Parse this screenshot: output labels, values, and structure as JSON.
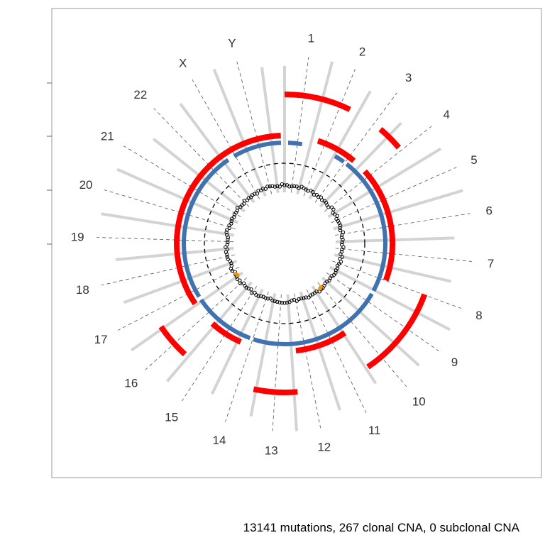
{
  "chart_data": {
    "type": "circos",
    "chromosomes": [
      "1",
      "2",
      "3",
      "4",
      "5",
      "6",
      "7",
      "8",
      "9",
      "10",
      "11",
      "12",
      "13",
      "14",
      "15",
      "16",
      "17",
      "18",
      "19",
      "20",
      "21",
      "22",
      "X",
      "Y"
    ],
    "caption": "13141 mutations, 267 clonal CNA, 0 subclonal CNA",
    "tracks": {
      "mutations": {
        "count": 13141,
        "color": "#000000",
        "highlight_color": "#FF9900"
      },
      "clonal_cna": {
        "count": 267,
        "gain_color": "#FF0000",
        "neutral_color": "#3F72AF",
        "segments": [
          {
            "start": 0,
            "end": 26,
            "state": "gain-high"
          },
          {
            "start": 18,
            "end": 40,
            "state": "gain"
          },
          {
            "start": 40,
            "end": 50,
            "state": "gain-high"
          },
          {
            "start": 48,
            "end": 110,
            "state": "gain"
          },
          {
            "start": 110,
            "end": 146,
            "state": "gain-high"
          },
          {
            "start": 146,
            "end": 160,
            "state": "neutral"
          },
          {
            "start": 160,
            "end": 174,
            "state": "gain"
          },
          {
            "start": 175,
            "end": 192,
            "state": "gain-high"
          },
          {
            "start": 204,
            "end": 222,
            "state": "gain"
          },
          {
            "start": 222,
            "end": 236,
            "state": "gain-high"
          },
          {
            "start": 236,
            "end": 320,
            "state": "gain"
          },
          {
            "start": 320,
            "end": 358,
            "state": "gain"
          }
        ],
        "neutral_segments": [
          {
            "start": 2,
            "end": 10
          },
          {
            "start": 30,
            "end": 36
          },
          {
            "start": 38,
            "end": 118
          },
          {
            "start": 120,
            "end": 198
          },
          {
            "start": 200,
            "end": 236
          },
          {
            "start": 238,
            "end": 326
          },
          {
            "start": 330,
            "end": 358
          }
        ]
      },
      "subclonal_cna": {
        "count": 0
      }
    }
  }
}
